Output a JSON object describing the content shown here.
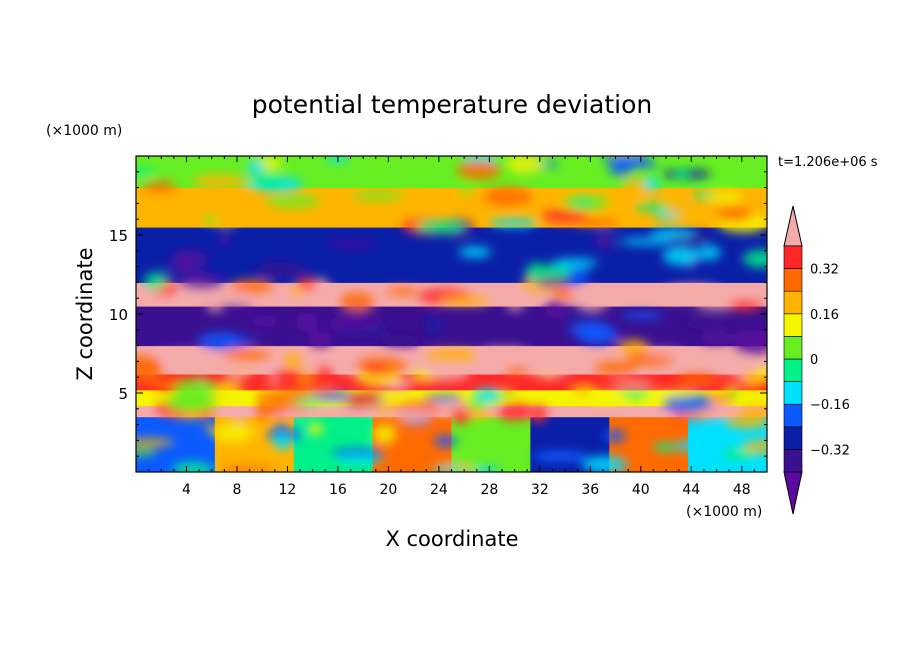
{
  "chart_data": {
    "type": "heatmap",
    "title": "potential temperature deviation",
    "xlabel": "X coordinate",
    "ylabel": "Z coordinate",
    "x_unit": "(×1000 m)",
    "y_unit": "(×1000 m)",
    "time_label": "t=1.206e+06 s",
    "xlim": [
      0,
      50
    ],
    "ylim": [
      0,
      20
    ],
    "x_ticks": [
      4,
      8,
      12,
      16,
      20,
      24,
      28,
      32,
      36,
      40,
      44,
      48
    ],
    "x_tick_labels": [
      "4",
      "8",
      "12",
      "16",
      "20",
      "24",
      "28",
      "32",
      "36",
      "40",
      "44",
      "48"
    ],
    "y_ticks": [
      5,
      10,
      15
    ],
    "y_tick_labels": [
      "5",
      "10",
      "15"
    ],
    "colorbar": {
      "levels": [
        -0.4,
        -0.32,
        -0.24,
        -0.16,
        -0.08,
        0,
        0.08,
        0.16,
        0.24,
        0.32,
        0.4
      ],
      "colors": [
        "#5a0a9e",
        "#3a1090",
        "#0a1fa8",
        "#0a5aff",
        "#00e0ff",
        "#00f08a",
        "#66ee22",
        "#f5f500",
        "#ffb400",
        "#ff6a00",
        "#ff2828",
        "#f5aaaa"
      ],
      "tick_values": [
        0.32,
        0.16,
        0,
        -0.16,
        -0.32
      ],
      "tick_labels": [
        "0.32",
        "0.16",
        "0",
        "−0.16",
        "−0.32"
      ],
      "extend": "both"
    },
    "bands": [
      {
        "z_range": [
          0,
          3.5
        ],
        "pattern": "alternating plumes",
        "values": [
          -0.24,
          0.2,
          -0.08,
          0.28,
          0.04,
          -0.3,
          0.3,
          -0.12
        ]
      },
      {
        "z_range": [
          3.5,
          4.2
        ],
        "value": 0.4
      },
      {
        "z_range": [
          4.2,
          5.2
        ],
        "value": 0.08
      },
      {
        "z_range": [
          5.2,
          6.2
        ],
        "value": 0.32
      },
      {
        "z_range": [
          6.2,
          8.0
        ],
        "value": 0.4
      },
      {
        "z_range": [
          8.0,
          10.5
        ],
        "value": -0.4
      },
      {
        "z_range": [
          10.5,
          12.0
        ],
        "value": 0.4
      },
      {
        "z_range": [
          12.0,
          15.5
        ],
        "value": -0.32
      },
      {
        "z_range": [
          15.5,
          18.0
        ],
        "value": 0.16
      },
      {
        "z_range": [
          18.0,
          20.0
        ],
        "value": 0.02
      }
    ],
    "grid": false,
    "legend": "right colorbar"
  }
}
